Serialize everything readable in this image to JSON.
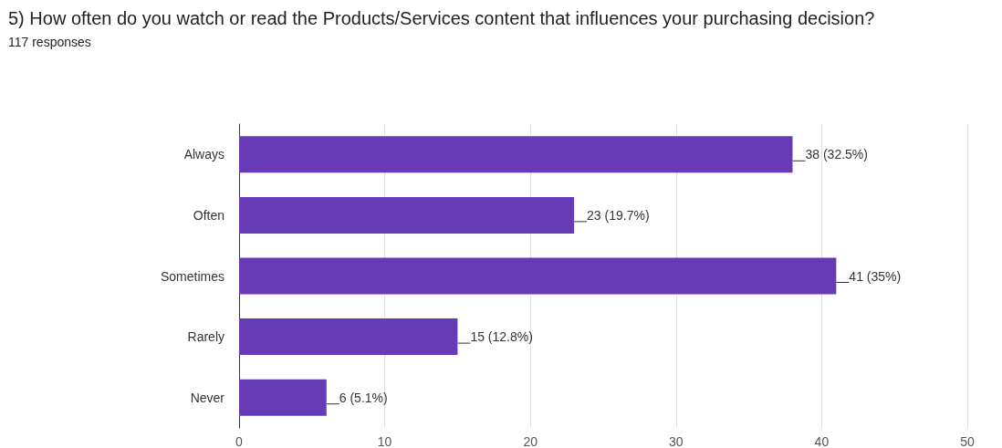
{
  "chart_data": {
    "type": "bar",
    "orientation": "horizontal",
    "title": "5) How often do you watch or read the Products/Services content that influences your purchasing decision?",
    "subtitle": "117 responses",
    "categories": [
      "Always",
      "Often",
      "Sometimes",
      "Rarely",
      "Never"
    ],
    "values": [
      38,
      23,
      41,
      15,
      6
    ],
    "value_labels": [
      "38 (32.5%)",
      "23 (19.7%)",
      "41 (35%)",
      "15 (12.8%)",
      "6 (5.1%)"
    ],
    "color": "#673ab7",
    "xlim": [
      0,
      50
    ],
    "xticks": [
      0,
      10,
      20,
      30,
      40,
      50
    ],
    "grid": "x"
  }
}
